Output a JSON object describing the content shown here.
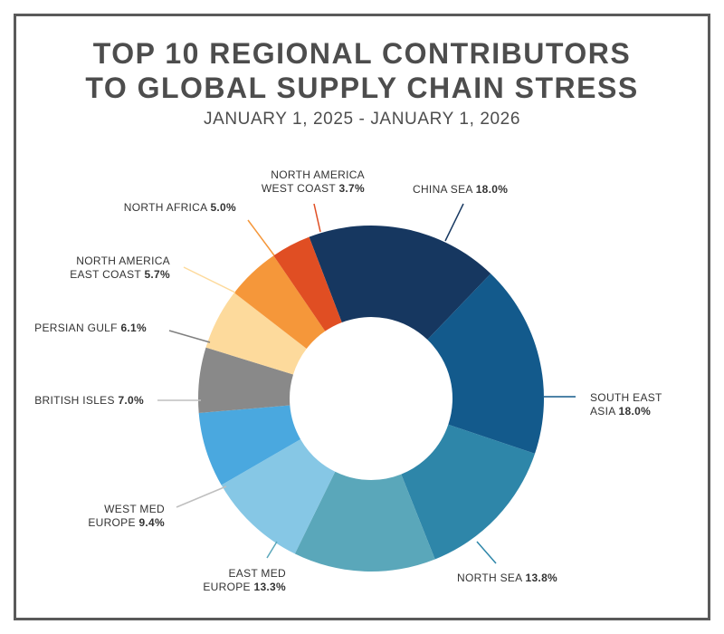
{
  "title_line1": "TOP 10 REGIONAL CONTRIBUTORS",
  "title_line2": "TO GLOBAL SUPPLY CHAIN STRESS",
  "subtitle": "JANUARY 1, 2025 - JANUARY 1, 2026",
  "chart_data": {
    "type": "pie",
    "donut": true,
    "legend": "none (callout labels)",
    "slices": [
      {
        "label": "CHINA SEA",
        "value": 18.0,
        "value_text": "18.0%",
        "color": "#163760"
      },
      {
        "label": "SOUTH EAST ASIA",
        "value": 18.0,
        "value_text": "18.0%",
        "color": "#135a8c"
      },
      {
        "label": "NORTH SEA",
        "value": 13.8,
        "value_text": "13.8%",
        "color": "#2e86a9"
      },
      {
        "label": "EAST MED EUROPE",
        "value": 13.3,
        "value_text": "13.3%",
        "color": "#5aa7ba"
      },
      {
        "label": "WEST MED EUROPE",
        "value": 9.4,
        "value_text": "9.4%",
        "color": "#86c7e5"
      },
      {
        "label": "BRITISH ISLES",
        "value": 7.0,
        "value_text": "7.0%",
        "color": "#4aa8df"
      },
      {
        "label": "PERSIAN GULF",
        "value": 6.1,
        "value_text": "6.1%",
        "color": "#898989"
      },
      {
        "label": "NORTH AMERICA EAST COAST",
        "value": 5.7,
        "value_text": "5.7%",
        "color": "#fdda9c"
      },
      {
        "label": "NORTH AFRICA",
        "value": 5.0,
        "value_text": "5.0%",
        "color": "#f5973a"
      },
      {
        "label": "NORTH AMERICA WEST COAST",
        "value": 3.7,
        "value_text": "3.7%",
        "color": "#e04e23"
      }
    ]
  }
}
